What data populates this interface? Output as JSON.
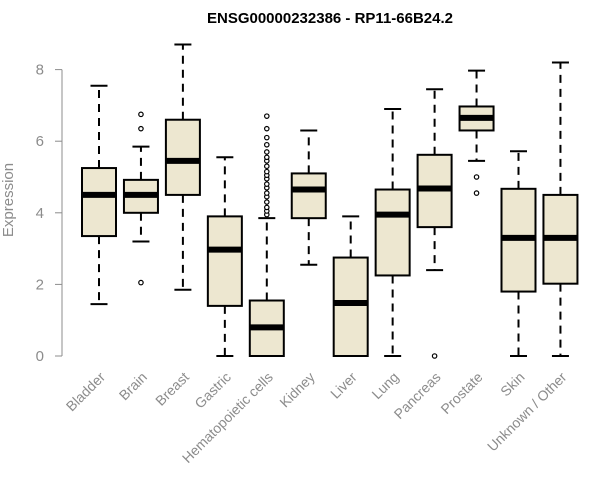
{
  "chart_data": {
    "type": "box",
    "title": "ENSG00000232386 - RP11-66B24.2",
    "ylabel": "Expression",
    "xlabel": "",
    "ylim": [
      0,
      8.8
    ],
    "yticks": [
      0,
      2,
      4,
      6,
      8
    ],
    "grid": false,
    "legend": "none",
    "colors": {
      "box_fill": "#ede7d0",
      "stroke": "#000000",
      "axis": "#8c8c8c",
      "text": "#8c8c8c"
    },
    "categories": [
      "Bladder",
      "Brain",
      "Breast",
      "Gastric",
      "Hematopoietic cells",
      "Kidney",
      "Liver",
      "Lung",
      "Pancreas",
      "Prostate",
      "Skin",
      "Unknown / Other"
    ],
    "boxes": [
      {
        "category": "Bladder",
        "whisker_low": 1.45,
        "q1": 3.35,
        "median": 4.5,
        "q3": 5.25,
        "whisker_high": 7.55,
        "outliers": []
      },
      {
        "category": "Brain",
        "whisker_low": 3.2,
        "q1": 4.0,
        "median": 4.5,
        "q3": 4.92,
        "whisker_high": 5.85,
        "outliers": [
          2.05,
          6.35,
          6.75
        ]
      },
      {
        "category": "Breast",
        "whisker_low": 1.85,
        "q1": 4.5,
        "median": 5.45,
        "q3": 6.6,
        "whisker_high": 8.7,
        "outliers": []
      },
      {
        "category": "Gastric",
        "whisker_low": 0.0,
        "q1": 1.4,
        "median": 2.97,
        "q3": 3.9,
        "whisker_high": 5.55,
        "outliers": []
      },
      {
        "category": "Hematopoietic cells",
        "whisker_low": 0.0,
        "q1": 0.0,
        "median": 0.8,
        "q3": 1.55,
        "whisker_high": 3.85,
        "outliers": [
          3.95,
          4.05,
          4.15,
          4.3,
          4.45,
          4.55,
          4.7,
          4.8,
          4.95,
          5.05,
          5.15,
          5.3,
          5.45,
          5.55,
          5.7,
          5.9,
          6.1,
          6.35,
          6.7
        ]
      },
      {
        "category": "Kidney",
        "whisker_low": 2.55,
        "q1": 3.85,
        "median": 4.65,
        "q3": 5.1,
        "whisker_high": 6.3,
        "outliers": []
      },
      {
        "category": "Liver",
        "whisker_low": 0.0,
        "q1": 0.0,
        "median": 1.48,
        "q3": 2.75,
        "whisker_high": 3.9,
        "outliers": []
      },
      {
        "category": "Lung",
        "whisker_low": 0.0,
        "q1": 2.25,
        "median": 3.95,
        "q3": 4.65,
        "whisker_high": 6.9,
        "outliers": []
      },
      {
        "category": "Pancreas",
        "whisker_low": 2.4,
        "q1": 3.6,
        "median": 4.68,
        "q3": 5.62,
        "whisker_high": 7.45,
        "outliers": [
          0.0
        ]
      },
      {
        "category": "Prostate",
        "whisker_low": 5.45,
        "q1": 6.3,
        "median": 6.65,
        "q3": 6.97,
        "whisker_high": 7.97,
        "outliers": [
          4.55,
          5.0
        ]
      },
      {
        "category": "Skin",
        "whisker_low": 0.0,
        "q1": 1.8,
        "median": 3.3,
        "q3": 4.67,
        "whisker_high": 5.72,
        "outliers": []
      },
      {
        "category": "Unknown / Other",
        "whisker_low": 0.0,
        "q1": 2.02,
        "median": 3.3,
        "q3": 4.5,
        "whisker_high": 8.2,
        "outliers": []
      }
    ]
  }
}
